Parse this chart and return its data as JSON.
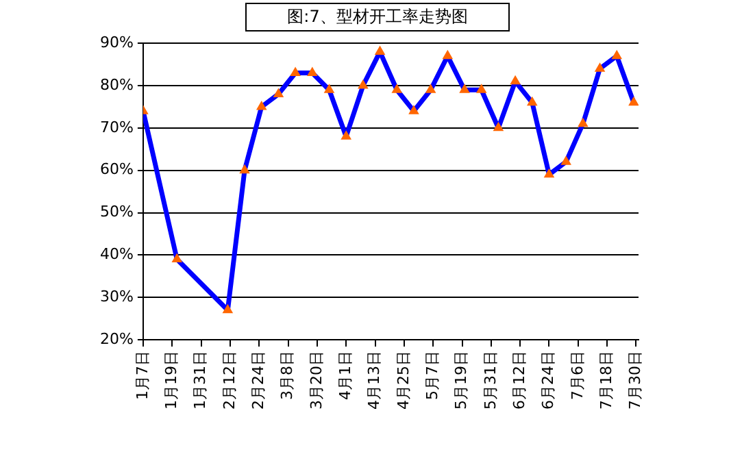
{
  "chart_data": {
    "type": "line",
    "title": "图:7、型材开工率走势图",
    "x": [
      "--01-07",
      "--01-21",
      "--02-11",
      "--02-18",
      "--02-25",
      "--03-04",
      "--03-11",
      "--03-18",
      "--03-25",
      "--04-01",
      "--04-08",
      "--04-15",
      "--04-22",
      "--04-29",
      "--05-06",
      "--05-13",
      "--05-20",
      "--05-27",
      "--06-03",
      "--06-10",
      "--06-17",
      "--06-24",
      "--07-01",
      "--07-08",
      "--07-15",
      "--07-22",
      "--07-29"
    ],
    "series": [
      {
        "color": "#0000ff",
        "values": [
          74,
          39,
          27,
          60,
          75,
          78,
          83,
          83,
          79,
          68,
          80,
          88,
          79,
          74,
          79,
          87,
          79,
          79,
          70,
          81,
          76,
          59,
          62,
          71,
          84,
          87,
          76
        ],
        "colors": [
          "#ff6600",
          "#ff6600",
          "#ff6600",
          "#ff6600",
          "#ff6600",
          "#ff6600",
          "#ff6600",
          "#ff6600",
          "#ff6600",
          "#ff6600",
          "#ff6600",
          "#ff6600",
          "#ff6600",
          "#ff6600",
          "#ff6600",
          "#ff6600",
          "#ff6600",
          "#ff6600",
          "#ff6600",
          "#ff6600",
          "#ff6600",
          "#ff6600",
          "#ff6600",
          "#ff6600",
          "#ff6600",
          "#ff6600",
          "#ff6600"
        ]
      }
    ],
    "marker": "triangle",
    "line_style": "solid",
    "xlim": [
      "--01-07",
      "--07-31"
    ],
    "xticks": [
      {
        "value": "--01-07",
        "label": "1月7日"
      },
      {
        "value": "--01-19",
        "label": "1月19日"
      },
      {
        "value": "--01-31",
        "label": "1月31日"
      },
      {
        "value": "--02-12",
        "label": "2月12日"
      },
      {
        "value": "--02-24",
        "label": "2月24日"
      },
      {
        "value": "--03-08",
        "label": "3月8日"
      },
      {
        "value": "--03-20",
        "label": "3月20日"
      },
      {
        "value": "--04-01",
        "label": "4月1日"
      },
      {
        "value": "--04-13",
        "label": "4月13日"
      },
      {
        "value": "--04-25",
        "label": "4月25日"
      },
      {
        "value": "--05-07",
        "label": "5月7日"
      },
      {
        "value": "--05-19",
        "label": "5月19日"
      },
      {
        "value": "--05-31",
        "label": "5月31日"
      },
      {
        "value": "--06-12",
        "label": "6月12日"
      },
      {
        "value": "--06-24",
        "label": "6月24日"
      },
      {
        "value": "--07-06",
        "label": "7月6日"
      },
      {
        "value": "--07-18",
        "label": "7月18日"
      },
      {
        "value": "--07-30",
        "label": "7月30日"
      }
    ],
    "ylim": [
      20,
      90
    ],
    "yticks": [
      {
        "value": 20,
        "label": "20%"
      },
      {
        "value": 30,
        "label": "30%"
      },
      {
        "value": 40,
        "label": "40%"
      },
      {
        "value": 50,
        "label": "50%"
      },
      {
        "value": 60,
        "label": "60%"
      },
      {
        "value": 70,
        "label": "70%"
      },
      {
        "value": 80,
        "label": "80%"
      },
      {
        "value": 90,
        "label": "90%"
      }
    ],
    "grid": "y",
    "legend": false
  }
}
